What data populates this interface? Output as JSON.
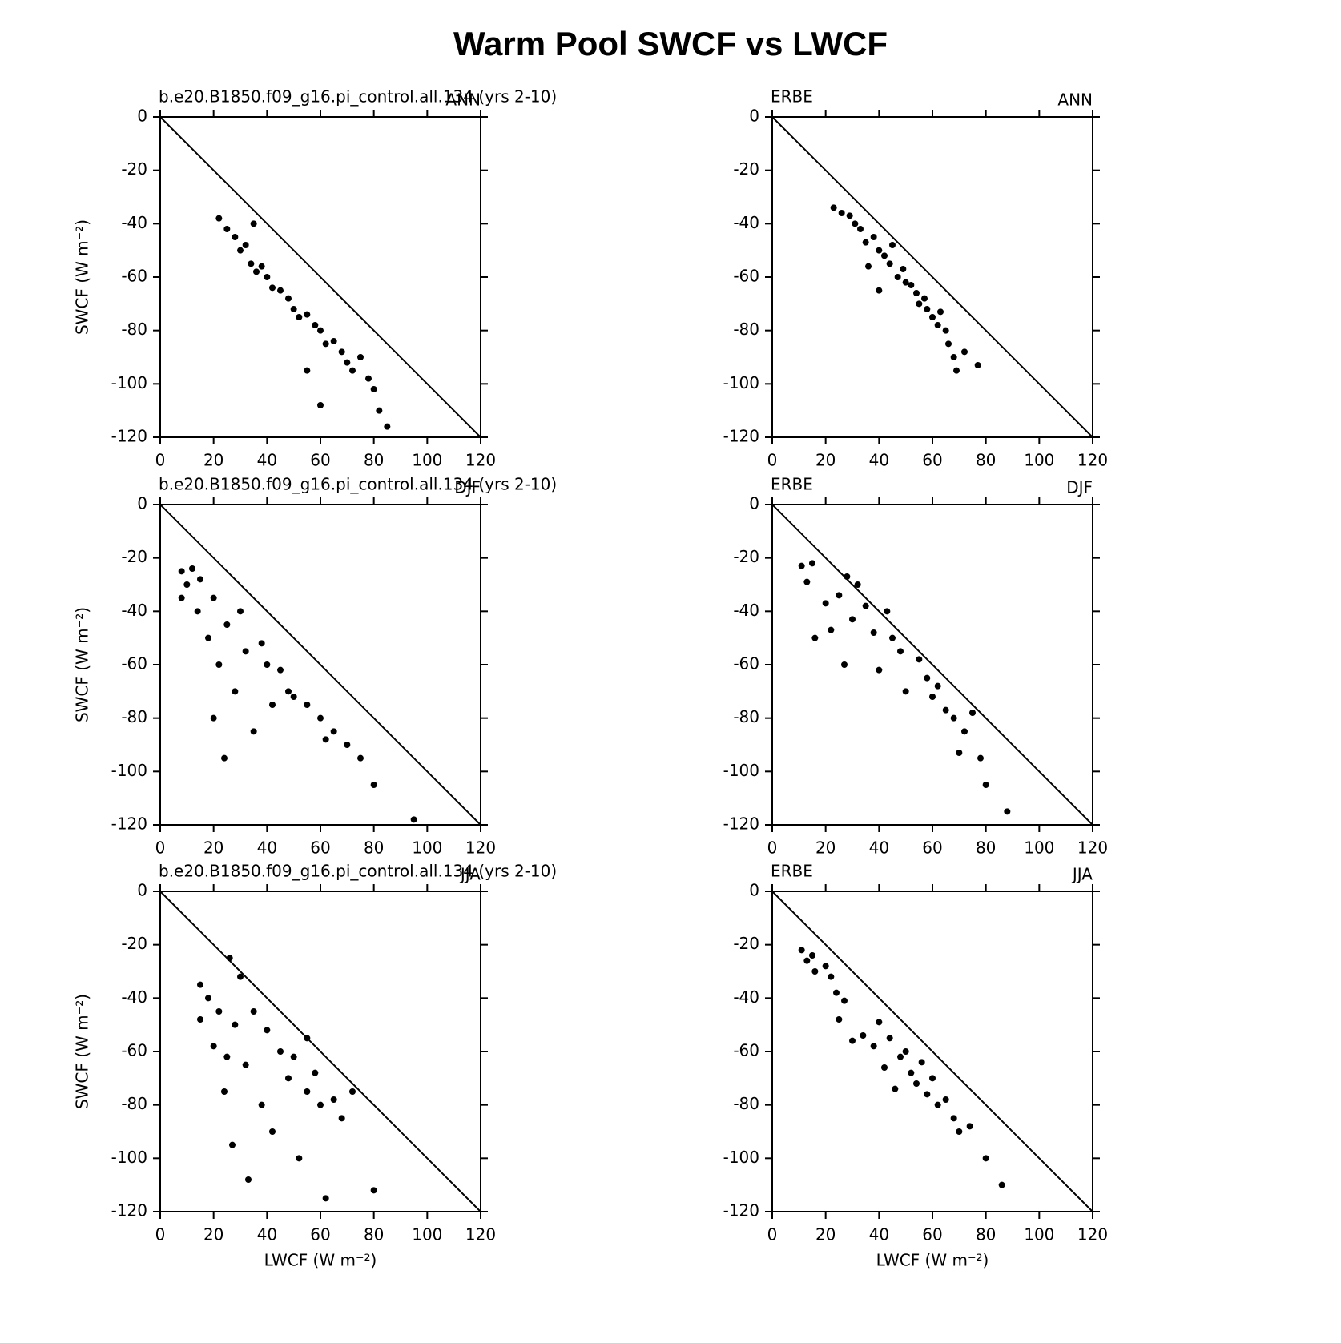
{
  "title": "Warm Pool SWCF vs LWCF",
  "chart_data": [
    {
      "type": "scatter",
      "title_left": "b.e20.B1850.f09_g16.pi_control.all.134 (yrs 2-10)",
      "title_right": "ANN",
      "ylabel": "SWCF (W m⁻²)",
      "color": "#000000",
      "x": [
        22,
        25,
        28,
        30,
        32,
        34,
        36,
        38,
        40,
        42,
        45,
        48,
        50,
        52,
        55,
        58,
        60,
        62,
        65,
        68,
        70,
        72,
        75,
        78,
        80,
        82,
        85,
        60,
        55,
        35
      ],
      "values": [
        -38,
        -42,
        -45,
        -50,
        -48,
        -55,
        -58,
        -56,
        -60,
        -64,
        -65,
        -68,
        -72,
        -75,
        -74,
        -78,
        -80,
        -85,
        -84,
        -88,
        -92,
        -95,
        -90,
        -98,
        -102,
        -110,
        -116,
        -108,
        -95,
        -40
      ],
      "xlim": [
        0,
        120
      ],
      "ylim": [
        -120,
        0
      ],
      "xticks": [
        0,
        20,
        40,
        60,
        80,
        100,
        120
      ],
      "yticks": [
        -120,
        -100,
        -80,
        -60,
        -40,
        -20,
        0
      ]
    },
    {
      "type": "scatter",
      "title_left": "ERBE",
      "title_right": "ANN",
      "color": "#000000",
      "x": [
        23,
        26,
        29,
        31,
        33,
        35,
        36,
        38,
        40,
        40,
        42,
        44,
        45,
        47,
        49,
        50,
        52,
        54,
        55,
        57,
        58,
        60,
        62,
        63,
        65,
        66,
        68,
        69,
        72,
        77
      ],
      "values": [
        -34,
        -36,
        -37,
        -40,
        -42,
        -47,
        -56,
        -45,
        -50,
        -65,
        -52,
        -55,
        -48,
        -60,
        -57,
        -62,
        -63,
        -66,
        -70,
        -68,
        -72,
        -75,
        -78,
        -73,
        -80,
        -85,
        -90,
        -95,
        -88,
        -93
      ],
      "xlim": [
        0,
        120
      ],
      "ylim": [
        -120,
        0
      ],
      "xticks": [
        0,
        20,
        40,
        60,
        80,
        100,
        120
      ],
      "yticks": [
        -120,
        -100,
        -80,
        -60,
        -40,
        -20,
        0
      ]
    },
    {
      "type": "scatter",
      "title_left": "b.e20.B1850.f09_g16.pi_control.all.134 (yrs 2-10)",
      "title_right": "DJF",
      "ylabel": "SWCF (W m⁻²)",
      "color": "#000000",
      "x": [
        8,
        8,
        10,
        12,
        14,
        15,
        18,
        20,
        20,
        22,
        24,
        25,
        28,
        30,
        32,
        35,
        38,
        40,
        42,
        45,
        48,
        50,
        55,
        60,
        62,
        65,
        70,
        75,
        80,
        95
      ],
      "values": [
        -25,
        -35,
        -30,
        -24,
        -40,
        -28,
        -50,
        -35,
        -80,
        -60,
        -95,
        -45,
        -70,
        -40,
        -55,
        -85,
        -52,
        -60,
        -75,
        -62,
        -70,
        -72,
        -75,
        -80,
        -88,
        -85,
        -90,
        -95,
        -105,
        -118
      ],
      "xlim": [
        0,
        120
      ],
      "ylim": [
        -120,
        0
      ],
      "xticks": [
        0,
        20,
        40,
        60,
        80,
        100,
        120
      ],
      "yticks": [
        -120,
        -100,
        -80,
        -60,
        -40,
        -20,
        0
      ]
    },
    {
      "type": "scatter",
      "title_left": "ERBE",
      "title_right": "DJF",
      "color": "#000000",
      "x": [
        11,
        13,
        15,
        16,
        20,
        22,
        25,
        27,
        28,
        30,
        32,
        35,
        38,
        40,
        43,
        45,
        48,
        50,
        55,
        58,
        60,
        62,
        65,
        68,
        70,
        72,
        75,
        78,
        80,
        88
      ],
      "values": [
        -23,
        -29,
        -22,
        -50,
        -37,
        -47,
        -34,
        -60,
        -27,
        -43,
        -30,
        -38,
        -48,
        -62,
        -40,
        -50,
        -55,
        -70,
        -58,
        -65,
        -72,
        -68,
        -77,
        -80,
        -93,
        -85,
        -78,
        -95,
        -105,
        -115
      ],
      "xlim": [
        0,
        120
      ],
      "ylim": [
        -120,
        0
      ],
      "xticks": [
        0,
        20,
        40,
        60,
        80,
        100,
        120
      ],
      "yticks": [
        -120,
        -100,
        -80,
        -60,
        -40,
        -20,
        0
      ]
    },
    {
      "type": "scatter",
      "title_left": "b.e20.B1850.f09_g16.pi_control.all.134 (yrs 2-10)",
      "title_right": "JJA",
      "ylabel": "SWCF (W m⁻²)",
      "xlabel": "LWCF (W m⁻²)",
      "color": "#000000",
      "x": [
        15,
        15,
        18,
        20,
        22,
        24,
        25,
        26,
        27,
        28,
        30,
        32,
        33,
        35,
        38,
        40,
        42,
        45,
        48,
        50,
        52,
        55,
        55,
        58,
        60,
        62,
        65,
        68,
        72,
        80
      ],
      "values": [
        -35,
        -48,
        -40,
        -58,
        -45,
        -75,
        -62,
        -25,
        -95,
        -50,
        -32,
        -65,
        -108,
        -45,
        -80,
        -52,
        -90,
        -60,
        -70,
        -62,
        -100,
        -55,
        -75,
        -68,
        -80,
        -115,
        -78,
        -85,
        -75,
        -112
      ],
      "xlim": [
        0,
        120
      ],
      "ylim": [
        -120,
        0
      ],
      "xticks": [
        0,
        20,
        40,
        60,
        80,
        100,
        120
      ],
      "yticks": [
        -120,
        -100,
        -80,
        -60,
        -40,
        -20,
        0
      ]
    },
    {
      "type": "scatter",
      "title_left": "ERBE",
      "title_right": "JJA",
      "xlabel": "LWCF (W m⁻²)",
      "color": "#000000",
      "x": [
        11,
        13,
        15,
        16,
        20,
        22,
        24,
        25,
        27,
        30,
        34,
        38,
        40,
        42,
        44,
        46,
        48,
        50,
        52,
        54,
        56,
        58,
        60,
        62,
        65,
        68,
        70,
        74,
        80,
        86
      ],
      "values": [
        -22,
        -26,
        -24,
        -30,
        -28,
        -32,
        -38,
        -48,
        -41,
        -56,
        -54,
        -58,
        -49,
        -66,
        -55,
        -74,
        -62,
        -60,
        -68,
        -72,
        -64,
        -76,
        -70,
        -80,
        -78,
        -85,
        -90,
        -88,
        -100,
        -110
      ],
      "xlim": [
        0,
        120
      ],
      "ylim": [
        -120,
        0
      ],
      "xticks": [
        0,
        20,
        40,
        60,
        80,
        100,
        120
      ],
      "yticks": [
        -120,
        -100,
        -80,
        -60,
        -40,
        -20,
        0
      ]
    }
  ]
}
